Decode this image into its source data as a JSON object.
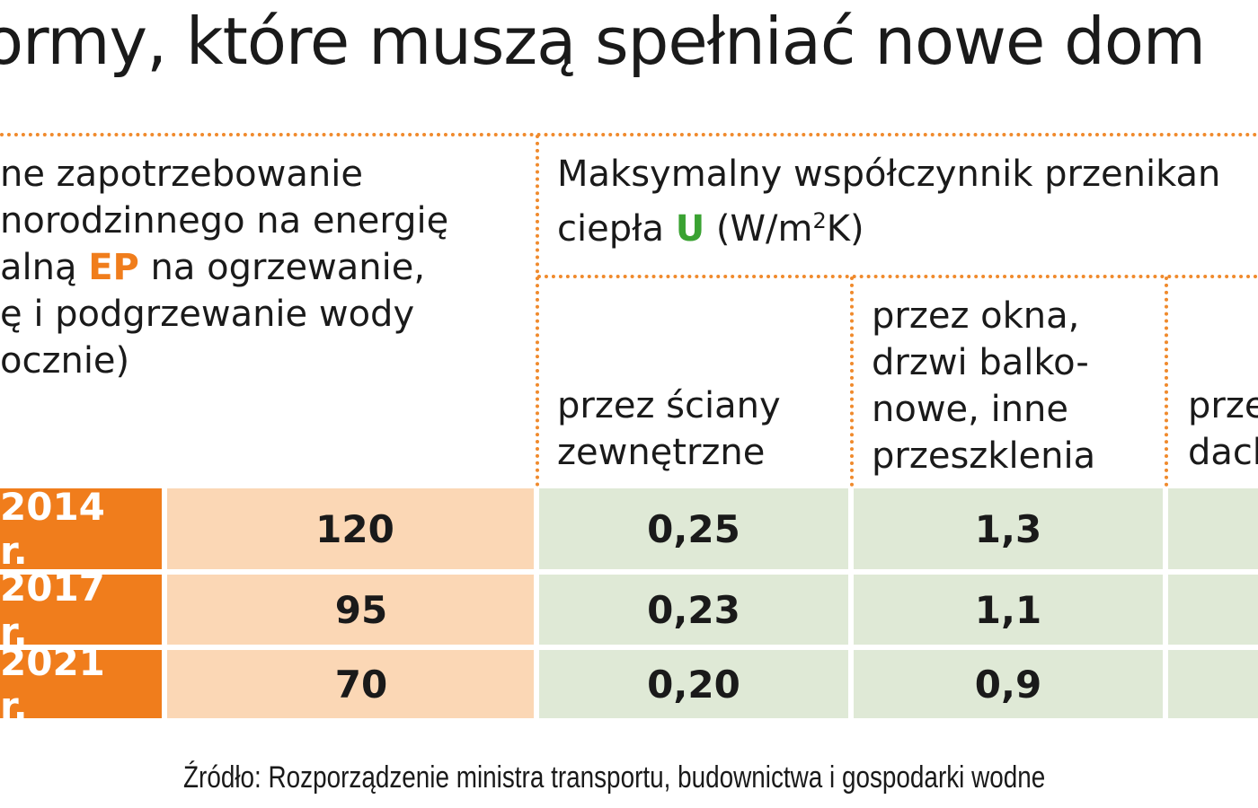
{
  "title": "ormy, które muszą spełniać nowe dom",
  "ep_header": {
    "lines": [
      "ne zapotrzebowanie",
      "norodzinnego na energię",
      "alną ",
      " na ogrzewanie,",
      "ę i podgrzewanie wody",
      "ocznie)"
    ],
    "ep_label": "EP"
  },
  "u_header": {
    "line1": "Maksymalny współczynnik przenikan",
    "line2_pre": "ciepła ",
    "u_label": "U",
    "line2_post": " (W/m",
    "sup": "2",
    "line2_end": "K)"
  },
  "columns": {
    "walls": [
      "przez ściany",
      "zewnętrzne"
    ],
    "windows": [
      "przez okna,",
      "drzwi balko-",
      "nowe, inne",
      "przeszklenia"
    ],
    "roof": [
      "prze",
      "dach"
    ]
  },
  "rows": [
    {
      "year": "2014 r.",
      "ep": "120",
      "walls": "0,25",
      "windows": "1,3"
    },
    {
      "year": "2017 r.",
      "ep": "95",
      "walls": "0,23",
      "windows": "1,1"
    },
    {
      "year": "2021 r.",
      "ep": "70",
      "walls": "0,20",
      "windows": "0,9"
    }
  ],
  "source": "Źródło: Rozporządzenie ministra transportu, budownictwa i gospodarki wodne",
  "colors": {
    "accent_orange": "#f07d1c",
    "ep_fill": "#fbd7b5",
    "u_fill": "#dfe9d6",
    "u_green": "#3aa232",
    "dotted_orange": "#f08a2c"
  }
}
